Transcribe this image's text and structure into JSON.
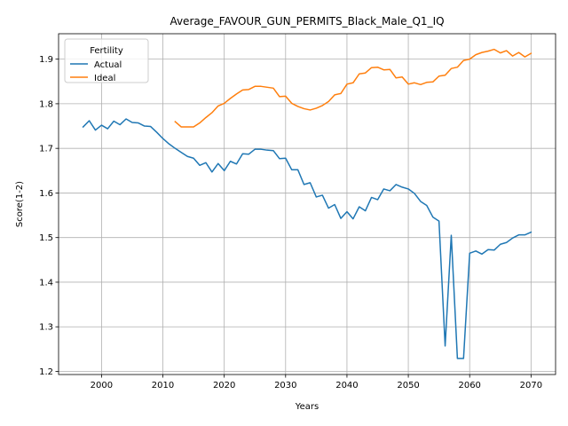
{
  "chart_data": {
    "type": "line",
    "title": "Average_FAVOUR_GUN_PERMITS_Black_Male_Q1_IQ",
    "xlabel": "Years",
    "ylabel": "Score(1-2)",
    "xlim": [
      1993,
      2074
    ],
    "ylim": [
      1.193,
      1.957
    ],
    "xticks": [
      2000,
      2010,
      2020,
      2030,
      2040,
      2050,
      2060,
      2070
    ],
    "yticks": [
      1.2,
      1.3,
      1.4,
      1.5,
      1.6,
      1.7,
      1.8,
      1.9
    ],
    "ytick_labels": [
      "1.2",
      "1.3",
      "1.4",
      "1.5",
      "1.6",
      "1.7",
      "1.8",
      "1.9"
    ],
    "grid": true,
    "legend": {
      "title": "Fertility",
      "position": "top-left"
    },
    "series": [
      {
        "name": "Actual",
        "color": "#1f77b4",
        "x": [
          1997,
          1998,
          1999,
          2000,
          2001,
          2002,
          2003,
          2004,
          2005,
          2006,
          2007,
          2008,
          2009,
          2010,
          2011,
          2012,
          2013,
          2014,
          2015,
          2016,
          2017,
          2018,
          2019,
          2020,
          2021,
          2022,
          2023,
          2024,
          2025,
          2026,
          2027,
          2028,
          2029,
          2030,
          2031,
          2032,
          2033,
          2034,
          2035,
          2036,
          2037,
          2038,
          2039,
          2040,
          2041,
          2042,
          2043,
          2044,
          2045,
          2046,
          2047,
          2048,
          2049,
          2050,
          2051,
          2052,
          2053,
          2054,
          2055,
          2056,
          2057,
          2058,
          2059,
          2060,
          2061,
          2062,
          2063,
          2064,
          2065,
          2066,
          2067,
          2068,
          2069,
          2070
        ],
        "values": [
          1.748,
          1.762,
          1.741,
          1.752,
          1.744,
          1.761,
          1.753,
          1.766,
          1.758,
          1.757,
          1.75,
          1.749,
          1.736,
          1.722,
          1.71,
          1.7,
          1.691,
          1.682,
          1.678,
          1.662,
          1.668,
          1.647,
          1.666,
          1.65,
          1.671,
          1.665,
          1.688,
          1.687,
          1.698,
          1.698,
          1.696,
          1.695,
          1.677,
          1.678,
          1.652,
          1.652,
          1.619,
          1.623,
          1.591,
          1.595,
          1.566,
          1.574,
          1.543,
          1.558,
          1.542,
          1.569,
          1.56,
          1.59,
          1.585,
          1.609,
          1.605,
          1.619,
          1.613,
          1.609,
          1.599,
          1.581,
          1.572,
          1.546,
          1.537,
          1.257,
          1.505,
          1.229,
          1.229,
          1.465,
          1.47,
          1.463,
          1.473,
          1.472,
          1.485,
          1.489,
          1.499,
          1.506,
          1.506,
          1.512
        ]
      },
      {
        "name": "Ideal",
        "color": "#ff7f0e",
        "x": [
          2012,
          2013,
          2014,
          2015,
          2016,
          2017,
          2018,
          2019,
          2020,
          2021,
          2022,
          2023,
          2024,
          2025,
          2026,
          2027,
          2028,
          2029,
          2030,
          2031,
          2032,
          2033,
          2034,
          2035,
          2036,
          2037,
          2038,
          2039,
          2040,
          2041,
          2042,
          2043,
          2044,
          2045,
          2046,
          2047,
          2048,
          2049,
          2050,
          2051,
          2052,
          2053,
          2054,
          2055,
          2056,
          2057,
          2058,
          2059,
          2060,
          2061,
          2062,
          2063,
          2064,
          2065,
          2066,
          2067,
          2068,
          2069,
          2070
        ],
        "values": [
          1.76,
          1.748,
          1.748,
          1.748,
          1.757,
          1.769,
          1.78,
          1.795,
          1.801,
          1.812,
          1.822,
          1.831,
          1.832,
          1.839,
          1.839,
          1.837,
          1.835,
          1.816,
          1.817,
          1.801,
          1.794,
          1.789,
          1.786,
          1.79,
          1.796,
          1.805,
          1.82,
          1.823,
          1.844,
          1.847,
          1.867,
          1.869,
          1.881,
          1.882,
          1.876,
          1.877,
          1.858,
          1.86,
          1.844,
          1.847,
          1.843,
          1.848,
          1.849,
          1.862,
          1.864,
          1.879,
          1.882,
          1.897,
          1.9,
          1.91,
          1.915,
          1.918,
          1.922,
          1.914,
          1.919,
          1.907,
          1.915,
          1.905,
          1.913
        ]
      }
    ]
  }
}
